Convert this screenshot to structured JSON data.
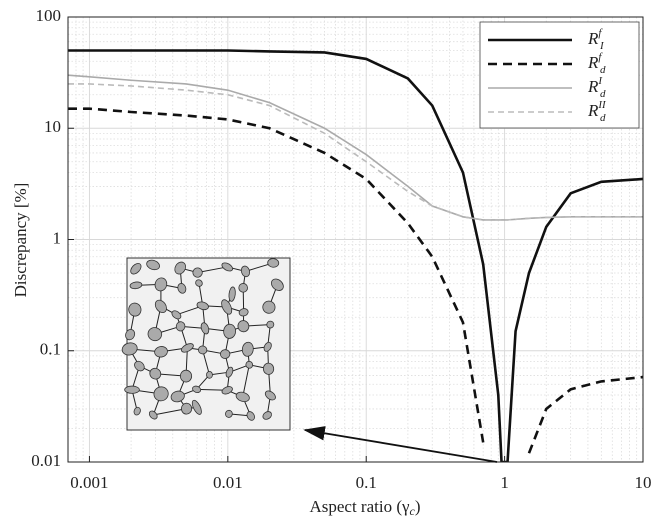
{
  "chart_data": {
    "type": "line",
    "xlabel": [
      "Aspect ratio (γ",
      "c",
      ")"
    ],
    "ylabel": "Discrepancy [%]",
    "x": [
      0.0007,
      0.001,
      0.002,
      0.005,
      0.01,
      0.02,
      0.05,
      0.1,
      0.2,
      0.3,
      0.5,
      0.7,
      0.9,
      0.95,
      1.05,
      1.2,
      1.5,
      2,
      3,
      5,
      10
    ],
    "series": [
      {
        "name": "R",
        "subscript": "I",
        "superscript": "f",
        "color": "#111111",
        "dash": false,
        "values": [
          50,
          50,
          50,
          50,
          50,
          49,
          48,
          42,
          28,
          16,
          4,
          0.6,
          0.04,
          0.01,
          0.01,
          0.15,
          0.5,
          1.3,
          2.6,
          3.3,
          3.5
        ]
      },
      {
        "name": "R",
        "subscript": "d",
        "superscript": "f",
        "color": "#111111",
        "dash": true,
        "values": [
          15,
          15,
          14,
          13,
          12,
          10,
          6,
          3.5,
          1.4,
          0.7,
          0.18,
          0.015,
          null,
          null,
          null,
          null,
          0.012,
          0.03,
          0.045,
          0.053,
          0.058
        ]
      },
      {
        "name": "R",
        "subscript": "d",
        "superscript": "I",
        "color": "#aaaaaa",
        "dash": false,
        "values": [
          30,
          29,
          27,
          25,
          22,
          17,
          10,
          5.8,
          3,
          2,
          1.6,
          1.5,
          1.5,
          1.5,
          1.5,
          1.52,
          1.55,
          1.58,
          1.6,
          1.6,
          1.6
        ]
      },
      {
        "name": "R",
        "subscript": "d",
        "superscript": "II",
        "color": "#bbbbbb",
        "dash": true,
        "values": [
          25,
          25,
          24,
          22,
          20,
          16,
          9,
          5,
          2.7,
          2,
          1.6,
          1.5,
          1.5,
          1.5,
          1.5,
          1.52,
          1.55,
          1.58,
          1.6,
          1.6,
          1.6
        ]
      }
    ],
    "xlog": true,
    "ylog": true,
    "xlim": [
      0.0007,
      10
    ],
    "ylim": [
      0.01,
      100
    ],
    "xticks": [
      0.001,
      0.01,
      0.1,
      1,
      10
    ],
    "yticks": [
      0.01,
      0.1,
      1,
      10,
      100
    ],
    "grid": true,
    "legend": "upper right"
  }
}
